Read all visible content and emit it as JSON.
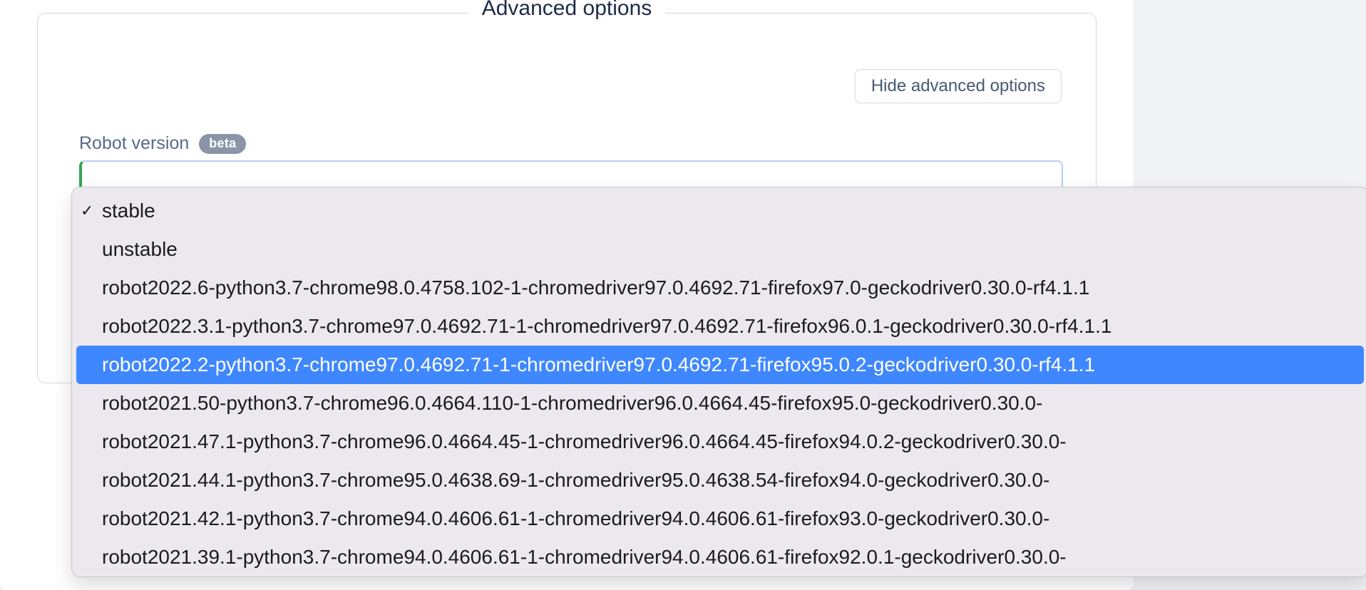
{
  "colors": {
    "text_dark": "#1e2a4a",
    "text_muted": "#5a6a8a",
    "border_light": "#d4d8e2",
    "page_bg": "#f2f3f6",
    "panel_bg": "#ffffff",
    "dropdown_bg": "#ece9ee",
    "dropdown_border": "#c8c4cf",
    "highlight_bg": "#3f87ff",
    "highlight_text": "#ffffff",
    "badge_bg": "#8b95a7",
    "badge_text": "#ffffff",
    "select_border": "#b7cff0",
    "select_accent": "#2fa84f"
  },
  "fieldset": {
    "legend": "Advanced options",
    "hide_button_label": "Hide advanced options"
  },
  "field": {
    "label": "Robot version",
    "badge": "beta"
  },
  "dropdown": {
    "selected_index": 0,
    "highlighted_index": 4,
    "options": [
      "stable",
      "unstable",
      "robot2022.6-python3.7-chrome98.0.4758.102-1-chromedriver97.0.4692.71-firefox97.0-geckodriver0.30.0-rf4.1.1",
      "robot2022.3.1-python3.7-chrome97.0.4692.71-1-chromedriver97.0.4692.71-firefox96.0.1-geckodriver0.30.0-rf4.1.1",
      "robot2022.2-python3.7-chrome97.0.4692.71-1-chromedriver97.0.4692.71-firefox95.0.2-geckodriver0.30.0-rf4.1.1",
      "robot2021.50-python3.7-chrome96.0.4664.110-1-chromedriver96.0.4664.45-firefox95.0-geckodriver0.30.0-",
      "robot2021.47.1-python3.7-chrome96.0.4664.45-1-chromedriver96.0.4664.45-firefox94.0.2-geckodriver0.30.0-",
      "robot2021.44.1-python3.7-chrome95.0.4638.69-1-chromedriver95.0.4638.54-firefox94.0-geckodriver0.30.0-",
      "robot2021.42.1-python3.7-chrome94.0.4606.61-1-chromedriver94.0.4606.61-firefox93.0-geckodriver0.30.0-",
      "robot2021.39.1-python3.7-chrome94.0.4606.61-1-chromedriver94.0.4606.61-firefox92.0.1-geckodriver0.30.0-"
    ]
  }
}
